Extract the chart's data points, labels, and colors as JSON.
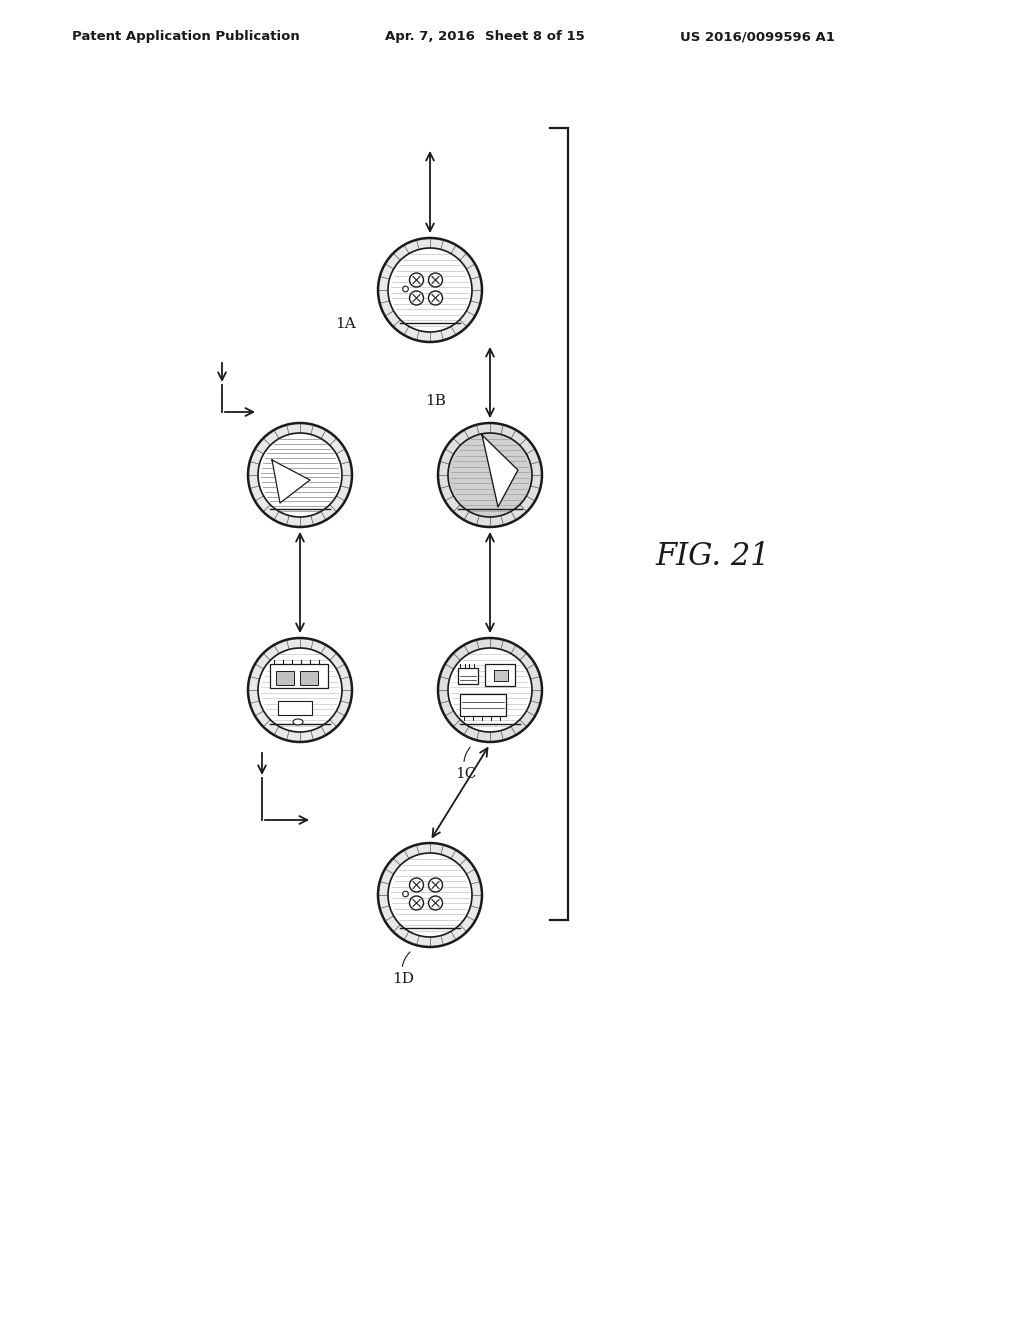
{
  "background_color": "#ffffff",
  "header_text": "Patent Application Publication",
  "header_date": "Apr. 7, 2016",
  "header_sheet": "Sheet 8 of 15",
  "header_patent": "US 2016/0099596 A1",
  "fig_label": "FIG. 21",
  "line_color": "#1a1a1a"
}
